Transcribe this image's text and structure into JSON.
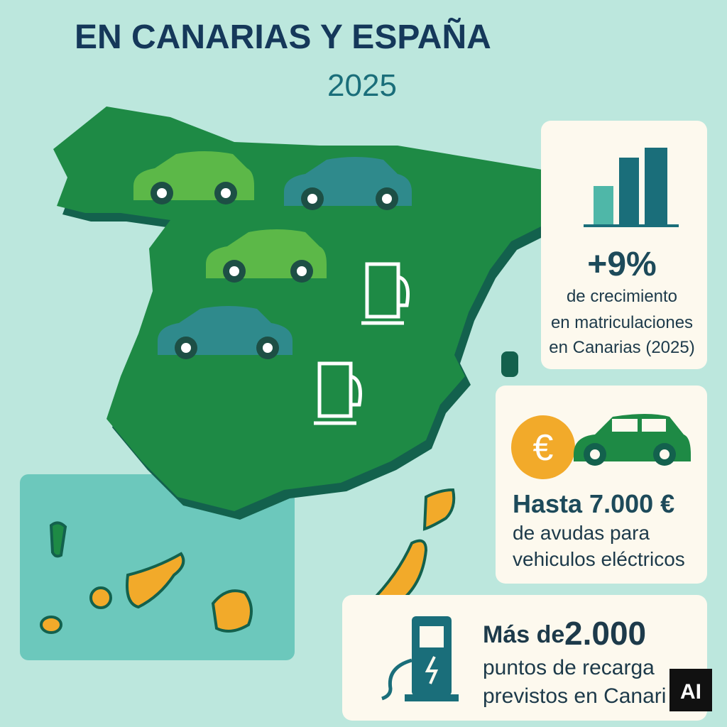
{
  "header": {
    "title": "EN CANARIAS Y ESPAÑA",
    "year": "2025"
  },
  "cards": [
    {
      "stat": "+9%",
      "lines": [
        "de crecimiento",
        "en matriculaciones",
        "en Canarias (2025)"
      ]
    },
    {
      "icon": "€",
      "stat": "Hasta 7.000 €",
      "lines": [
        "de avudas para",
        "vehiculos eléctricos"
      ]
    },
    {
      "stat_prefix": "Más de",
      "stat": "2.000",
      "lines": [
        "puntos de recarga",
        "previstos en Canari"
      ]
    }
  ],
  "badge": "AI"
}
